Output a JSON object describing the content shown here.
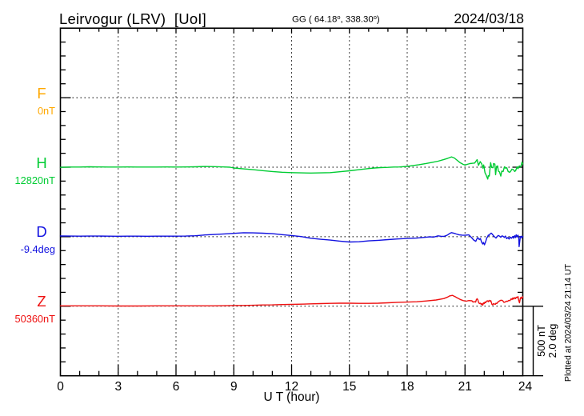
{
  "page_title": "Leirvogur magnetogram",
  "header": {
    "station_title": "Leirvogur (LRV)  [UoI]",
    "coords_prefix": "GG ( 64.18",
    "coords_deg1": "o",
    "coords_mid": ", 338.30",
    "coords_deg2": "o",
    "coords_suffix": ")",
    "date": "2024/03/18"
  },
  "footer": {
    "plotted_at": "Plotted at 2024/03/24 21:14 UT"
  },
  "chart_data": {
    "type": "line",
    "title": "Leirvogur (LRV)  [UoI]",
    "date": "2024/03/18",
    "geographic_coords": "GG ( 64.18°, 338.30°)",
    "xlabel": "U T (hour)",
    "x_range": [
      0,
      24
    ],
    "x_major_ticks": [
      0,
      3,
      6,
      9,
      12,
      15,
      18,
      21,
      24
    ],
    "x_minor_step_hours": 1,
    "y_minor_step_nT": 100,
    "y_divisions": 25,
    "grid": "dotted vertical at 3h intervals, dotted horizontal at trace baselines",
    "scale_bar": {
      "line1": "500 nT",
      "line2": "2.0 deg",
      "span_nT": 500,
      "span_deg": 2.0
    },
    "series": [
      {
        "id": "F",
        "label": "F",
        "value_label": "0nT",
        "baseline_value": 0,
        "unit": "nT",
        "color": "#FFA800",
        "points": []
      },
      {
        "id": "H",
        "label": "H",
        "value_label": "12820nT",
        "baseline_value": 12820,
        "unit": "nT",
        "color": "#00CC33",
        "points": [
          [
            0,
            -1.0
          ],
          [
            0.5,
            1.0
          ],
          [
            1,
            1.0
          ],
          [
            1.5,
            3.0
          ],
          [
            2,
            2.0
          ],
          [
            2.5,
            1.0
          ],
          [
            3,
            1.0
          ],
          [
            3.5,
            2.0
          ],
          [
            4,
            1.0
          ],
          [
            4.5,
            1.0
          ],
          [
            5,
            1.0
          ],
          [
            5.5,
            2.0
          ],
          [
            6,
            1.0
          ],
          [
            6.5,
            2.0
          ],
          [
            7,
            3.0
          ],
          [
            7.5,
            5.0
          ],
          [
            8,
            4.0
          ],
          [
            8.5,
            2.0
          ],
          [
            8.8,
            0.0
          ],
          [
            9,
            -6.0
          ],
          [
            9.5,
            -12.0
          ],
          [
            10,
            -18.0
          ],
          [
            10.5,
            -25.0
          ],
          [
            11,
            -31.0
          ],
          [
            11.5,
            -36.0
          ],
          [
            12,
            -39.0
          ],
          [
            12.5,
            -41.0
          ],
          [
            13,
            -42.0
          ],
          [
            13.5,
            -41.0
          ],
          [
            14,
            -39.0
          ],
          [
            14.5,
            -33.0
          ],
          [
            15,
            -26.0
          ],
          [
            15.5,
            -18.0
          ],
          [
            16,
            -10.0
          ],
          [
            16.3,
            -6.0
          ],
          [
            16.6,
            -3.0
          ],
          [
            17,
            -1.0
          ],
          [
            17.3,
            1.0
          ],
          [
            17.6,
            2.0
          ],
          [
            18,
            6.0
          ],
          [
            18.3,
            12.0
          ],
          [
            18.6,
            18.0
          ],
          [
            19,
            27.0
          ],
          [
            19.3,
            35.0
          ],
          [
            19.6,
            43.0
          ],
          [
            19.9,
            55.0
          ],
          [
            20.1,
            64.0
          ],
          [
            20.3,
            74.0
          ],
          [
            20.45,
            66.0
          ],
          [
            20.6,
            49.0
          ],
          [
            20.75,
            32.0
          ],
          [
            20.9,
            21.0
          ],
          [
            21.0,
            15.0
          ],
          [
            21.1,
            20.0
          ],
          [
            21.25,
            26.0
          ],
          [
            21.4,
            28.0
          ],
          [
            21.5,
            30.0
          ],
          [
            21.63,
            54.0
          ],
          [
            21.7,
            13.0
          ],
          [
            21.79,
            40.0
          ],
          [
            21.87,
            23.0
          ],
          [
            21.93,
            -7.0
          ],
          [
            21.97,
            16.0
          ],
          [
            22.04,
            -41.0
          ],
          [
            22.09,
            -54.0
          ],
          [
            22.18,
            -85.0
          ],
          [
            22.21,
            -61.0
          ],
          [
            22.26,
            -64.0
          ],
          [
            22.33,
            33.0
          ],
          [
            22.38,
            -1.0
          ],
          [
            22.45,
            -4.0
          ],
          [
            22.48,
            26.0
          ],
          [
            22.55,
            23.0
          ],
          [
            22.59,
            -54.0
          ],
          [
            22.64,
            6.0
          ],
          [
            22.69,
            9.0
          ],
          [
            22.73,
            -28.0
          ],
          [
            22.79,
            -34.0
          ],
          [
            22.86,
            -64.0
          ],
          [
            22.91,
            -28.0
          ],
          [
            22.98,
            -31.0
          ],
          [
            23.05,
            3.0
          ],
          [
            23.1,
            -7.0
          ],
          [
            23.17,
            -4.0
          ],
          [
            23.24,
            -31.0
          ],
          [
            23.32,
            -37.0
          ],
          [
            23.36,
            -31.0
          ],
          [
            23.44,
            -14.0
          ],
          [
            23.51,
            -17.0
          ],
          [
            23.58,
            -31.0
          ],
          [
            23.63,
            -24.0
          ],
          [
            23.7,
            3.0
          ],
          [
            23.75,
            -11.0
          ],
          [
            23.82,
            9.0
          ],
          [
            23.87,
            3.0
          ],
          [
            23.92,
            13.0
          ],
          [
            23.96,
            36.0
          ],
          [
            24.0,
            23.0
          ]
        ]
      },
      {
        "id": "D",
        "label": "D",
        "value_label": "-9.4deg",
        "baseline_value": -9.4,
        "unit": "deg",
        "color": "#1212E0",
        "points": [
          [
            0,
            0.021
          ],
          [
            0.5,
            0.018
          ],
          [
            1,
            0.016
          ],
          [
            1.5,
            0.018
          ],
          [
            2,
            0.018
          ],
          [
            2.5,
            0.016
          ],
          [
            3,
            0.014
          ],
          [
            3.5,
            0.016
          ],
          [
            4,
            0.016
          ],
          [
            4.5,
            0.014
          ],
          [
            5,
            0.016
          ],
          [
            5.5,
            0.016
          ],
          [
            6,
            0.016
          ],
          [
            6.5,
            0.018
          ],
          [
            7,
            0.028
          ],
          [
            7.5,
            0.051
          ],
          [
            8,
            0.064
          ],
          [
            8.5,
            0.081
          ],
          [
            9,
            0.097
          ],
          [
            9.5,
            0.115
          ],
          [
            10,
            0.11
          ],
          [
            10.5,
            0.101
          ],
          [
            11,
            0.087
          ],
          [
            11.5,
            0.06
          ],
          [
            12,
            0.035
          ],
          [
            12.5,
            0.005
          ],
          [
            13,
            -0.044
          ],
          [
            13.5,
            -0.074
          ],
          [
            14,
            -0.097
          ],
          [
            14.5,
            -0.127
          ],
          [
            15,
            -0.152
          ],
          [
            15.5,
            -0.145
          ],
          [
            16,
            -0.12
          ],
          [
            16.5,
            -0.104
          ],
          [
            17,
            -0.083
          ],
          [
            17.5,
            -0.064
          ],
          [
            18,
            -0.051
          ],
          [
            18.5,
            -0.039
          ],
          [
            19,
            -0.012
          ],
          [
            19.2,
            -0.002
          ],
          [
            19.35,
            -0.012
          ],
          [
            19.5,
            0.007
          ],
          [
            19.6,
            0.025
          ],
          [
            19.75,
            0.014
          ],
          [
            19.9,
            0.009
          ],
          [
            20.0,
            0.028
          ],
          [
            20.1,
            0.053
          ],
          [
            20.2,
            0.092
          ],
          [
            20.3,
            0.117
          ],
          [
            20.45,
            0.097
          ],
          [
            20.55,
            0.078
          ],
          [
            20.7,
            0.053
          ],
          [
            20.85,
            0.046
          ],
          [
            21.0,
            0.041
          ],
          [
            21.1,
            0.048
          ],
          [
            21.2,
            0.053
          ],
          [
            21.36,
            -0.037
          ],
          [
            21.45,
            -0.094
          ],
          [
            21.56,
            -0.133
          ],
          [
            21.61,
            -0.071
          ],
          [
            21.67,
            -0.028
          ],
          [
            21.74,
            -0.083
          ],
          [
            21.8,
            -0.051
          ],
          [
            21.86,
            -0.154
          ],
          [
            21.92,
            -0.209
          ],
          [
            21.96,
            -0.166
          ],
          [
            22.01,
            -0.232
          ],
          [
            22.05,
            -0.177
          ],
          [
            22.09,
            -0.11
          ],
          [
            22.13,
            -0.032
          ],
          [
            22.17,
            -0.007
          ],
          [
            22.21,
            0.046
          ],
          [
            22.25,
            0.037
          ],
          [
            22.3,
            0.081
          ],
          [
            22.36,
            0.104
          ],
          [
            22.42,
            0.071
          ],
          [
            22.48,
            0.028
          ],
          [
            22.55,
            -0.012
          ],
          [
            22.61,
            -0.039
          ],
          [
            22.67,
            0.009
          ],
          [
            22.73,
            0.037
          ],
          [
            22.79,
            0.016
          ],
          [
            22.86,
            -0.016
          ],
          [
            22.92,
            0.025
          ],
          [
            22.98,
            0.012
          ],
          [
            23.04,
            -0.021
          ],
          [
            23.1,
            0.018
          ],
          [
            23.16,
            -0.055
          ],
          [
            23.23,
            -0.023
          ],
          [
            23.29,
            -0.067
          ],
          [
            23.35,
            -0.009
          ],
          [
            23.41,
            -0.046
          ],
          [
            23.48,
            0.007
          ],
          [
            23.52,
            -0.041
          ],
          [
            23.58,
            0.03
          ],
          [
            23.62,
            -0.025
          ],
          [
            23.66,
            0.055
          ],
          [
            23.7,
            -0.002
          ],
          [
            23.75,
            0.044
          ],
          [
            23.79,
            -0.025
          ],
          [
            23.81,
            -0.285
          ],
          [
            23.85,
            -0.094
          ],
          [
            23.87,
            -0.002
          ],
          [
            23.91,
            0.014
          ],
          [
            23.95,
            -0.037
          ],
          [
            24.0,
            0.009
          ]
        ]
      },
      {
        "id": "Z",
        "label": "Z",
        "value_label": "50360nT",
        "baseline_value": 50360,
        "unit": "nT",
        "color": "#EE1111",
        "points": [
          [
            0,
            3.0
          ],
          [
            1,
            3.0
          ],
          [
            2,
            3.0
          ],
          [
            3,
            2.0
          ],
          [
            4,
            2.0
          ],
          [
            5,
            3.0
          ],
          [
            6,
            3.0
          ],
          [
            7,
            3.0
          ],
          [
            8,
            3.0
          ],
          [
            9,
            5.0
          ],
          [
            9.5,
            6.0
          ],
          [
            10,
            7.0
          ],
          [
            10.5,
            9.0
          ],
          [
            11,
            10.0
          ],
          [
            11.5,
            12.0
          ],
          [
            12,
            13.0
          ],
          [
            12.5,
            15.0
          ],
          [
            13,
            17.0
          ],
          [
            13.5,
            19.0
          ],
          [
            14,
            21.0
          ],
          [
            14.5,
            22.0
          ],
          [
            15,
            22.0
          ],
          [
            15.5,
            21.0
          ],
          [
            16,
            21.0
          ],
          [
            16.5,
            22.0
          ],
          [
            17,
            25.0
          ],
          [
            17.5,
            28.0
          ],
          [
            18,
            30.0
          ],
          [
            18.5,
            32.0
          ],
          [
            19,
            38.0
          ],
          [
            19.5,
            45.0
          ],
          [
            19.9,
            55.0
          ],
          [
            20.1,
            66.0
          ],
          [
            20.2,
            74.0
          ],
          [
            20.35,
            78.0
          ],
          [
            20.5,
            68.0
          ],
          [
            20.6,
            60.0
          ],
          [
            20.75,
            49.0
          ],
          [
            20.9,
            41.0
          ],
          [
            21.05,
            36.0
          ],
          [
            21.2,
            41.0
          ],
          [
            21.36,
            39.0
          ],
          [
            21.42,
            30.0
          ],
          [
            21.49,
            33.0
          ],
          [
            21.55,
            30.0
          ],
          [
            21.59,
            48.0
          ],
          [
            21.63,
            54.0
          ],
          [
            21.67,
            45.0
          ],
          [
            21.7,
            29.0
          ],
          [
            21.75,
            19.0
          ],
          [
            21.8,
            22.0
          ],
          [
            21.84,
            13.0
          ],
          [
            21.88,
            19.0
          ],
          [
            21.92,
            7.0
          ],
          [
            21.96,
            25.0
          ],
          [
            22.0,
            19.0
          ],
          [
            22.03,
            30.0
          ],
          [
            22.07,
            25.0
          ],
          [
            22.11,
            36.0
          ],
          [
            22.17,
            39.0
          ],
          [
            22.21,
            33.0
          ],
          [
            22.25,
            42.0
          ],
          [
            22.3,
            36.0
          ],
          [
            22.34,
            40.0
          ],
          [
            22.4,
            13.0
          ],
          [
            22.44,
            10.0
          ],
          [
            22.48,
            19.0
          ],
          [
            22.52,
            16.0
          ],
          [
            22.57,
            13.0
          ],
          [
            22.61,
            22.0
          ],
          [
            22.65,
            19.0
          ],
          [
            22.71,
            30.0
          ],
          [
            22.77,
            36.0
          ],
          [
            22.84,
            42.0
          ],
          [
            22.9,
            43.0
          ],
          [
            22.96,
            39.0
          ],
          [
            23.02,
            28.0
          ],
          [
            23.08,
            30.0
          ],
          [
            23.15,
            36.0
          ],
          [
            23.21,
            35.0
          ],
          [
            23.27,
            42.0
          ],
          [
            23.33,
            40.0
          ],
          [
            23.4,
            54.0
          ],
          [
            23.44,
            48.0
          ],
          [
            23.48,
            59.0
          ],
          [
            23.52,
            51.0
          ],
          [
            23.56,
            62.0
          ],
          [
            23.62,
            54.0
          ],
          [
            23.66,
            65.0
          ],
          [
            23.7,
            62.0
          ],
          [
            23.75,
            69.0
          ],
          [
            23.79,
            42.0
          ],
          [
            23.83,
            25.0
          ],
          [
            23.87,
            56.0
          ],
          [
            23.91,
            65.0
          ],
          [
            23.95,
            54.0
          ],
          [
            24.0,
            68.0
          ]
        ]
      }
    ]
  }
}
